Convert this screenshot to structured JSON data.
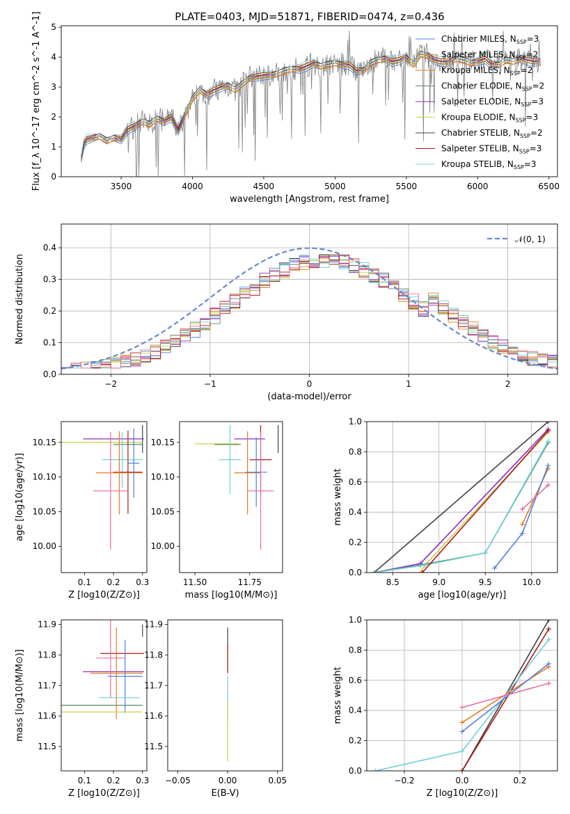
{
  "figure": {
    "title": "PLATE=0403, MJD=51871, FIBERID=0474, z=0.436"
  },
  "colors": {
    "Chabrier MILES": "#4f7fdc",
    "Salpeter MILES": "#d9851c",
    "Kroupa MILES": "#e87a1a",
    "Chabrier ELODIE": "#5a8a6a",
    "Salpeter ELODIE": "#8a2cc0",
    "Kroupa ELODIE": "#c8d14a",
    "Chabrier STELIB": "#404040",
    "Salpeter STELIB": "#b01515",
    "Kroupa STELIB": "#70d0d8",
    "pink": "#e36fa6",
    "data": "#7f7f7f",
    "normal": "#6688d4"
  },
  "chart_data": [
    {
      "id": "spectrum",
      "type": "line",
      "xlabel": "wavelength [Angstrom, rest frame]",
      "ylabel": "Flux [f_λ 10^-17 erg cm^-2 s^-1 A^-1]",
      "xlim": [
        3080,
        6560
      ],
      "ylim": [
        0,
        5.05
      ],
      "xticks": [
        3500,
        4000,
        4500,
        5000,
        5500,
        6000,
        6500
      ],
      "yticks": [
        0,
        1,
        2,
        3,
        4,
        5
      ],
      "grid": false,
      "legend_position": "top-right",
      "legend": [
        {
          "name": "Chabrier MILES",
          "nssp": "3",
          "color": "#4f7fdc"
        },
        {
          "name": "Salpeter MILES",
          "nssp": "2",
          "color": "#d9851c"
        },
        {
          "name": "Kroupa MILES",
          "nssp": "2",
          "color": "#e87a1a"
        },
        {
          "name": "Chabrier ELODIE",
          "nssp": "2",
          "color": "#5a8a6a"
        },
        {
          "name": "Salpeter ELODIE",
          "nssp": "3",
          "color": "#8a2cc0"
        },
        {
          "name": "Kroupa ELODIE",
          "nssp": "3",
          "color": "#c8d14a"
        },
        {
          "name": "Chabrier STELIB",
          "nssp": "2",
          "color": "#404040"
        },
        {
          "name": "Salpeter STELIB",
          "nssp": "3",
          "color": "#b01515"
        },
        {
          "name": "Kroupa STELIB",
          "nssp": "3",
          "color": "#70d0d8"
        }
      ],
      "model_x": [
        3220,
        3240,
        3260,
        3300,
        3350,
        3400,
        3450,
        3500,
        3550,
        3600,
        3650,
        3700,
        3750,
        3800,
        3850,
        3900,
        3950,
        4000,
        4050,
        4100,
        4150,
        4200,
        4250,
        4300,
        4350,
        4400,
        4450,
        4500,
        4550,
        4600,
        4650,
        4700,
        4750,
        4800,
        4850,
        4900,
        4950,
        5000,
        5050,
        5100,
        5150,
        5200,
        5250,
        5300,
        5350,
        5400,
        5450,
        5500,
        5550,
        5600,
        5650,
        5700,
        5750,
        5800,
        5850,
        5900,
        5950,
        6000,
        6050,
        6100,
        6150,
        6200,
        6250,
        6300,
        6350,
        6400,
        6440
      ],
      "model_y": [
        0.6,
        1.1,
        1.25,
        1.3,
        1.35,
        1.2,
        1.3,
        1.25,
        1.6,
        1.7,
        1.85,
        1.75,
        1.95,
        1.85,
        2.0,
        1.55,
        2.1,
        2.6,
        2.9,
        2.75,
        2.9,
        3.0,
        3.05,
        2.9,
        3.1,
        3.3,
        3.35,
        3.4,
        3.4,
        3.45,
        3.55,
        3.6,
        3.6,
        3.7,
        3.8,
        3.7,
        3.75,
        3.8,
        3.75,
        3.75,
        3.55,
        3.55,
        3.8,
        3.9,
        3.95,
        3.85,
        3.9,
        4.0,
        3.75,
        4.1,
        4.05,
        3.9,
        3.85,
        3.85,
        3.95,
        3.9,
        3.8,
        3.85,
        3.95,
        3.75,
        3.75,
        3.9,
        3.85,
        3.95,
        3.9,
        3.85,
        3.85
      ]
    },
    {
      "id": "residuals",
      "type": "histogram",
      "xlabel": "(data-model)/error",
      "ylabel": "Normed distribution",
      "xlim": [
        -2.5,
        2.5
      ],
      "ylim": [
        0,
        0.475
      ],
      "xticks": [
        -2,
        -1,
        0,
        1,
        2
      ],
      "yticks": [
        0.0,
        0.1,
        0.2,
        0.3,
        0.4
      ],
      "grid": true,
      "legend": [
        {
          "name": "N(0,1)",
          "color": "#6688d4"
        }
      ],
      "legend_position": "top-right",
      "bin_width": 0.1
    },
    {
      "id": "age-vs-Z",
      "type": "errorbar",
      "xlabel": "Z [log10(Z/Z⊙)]",
      "ylabel": "age [log10(age/yr)]",
      "xlim": [
        0.02,
        0.315
      ],
      "ylim": [
        9.962,
        10.18
      ],
      "xticks": [
        0.1,
        0.2,
        0.3
      ],
      "yticks": [
        10.0,
        10.05,
        10.1,
        10.15
      ],
      "points": [
        {
          "x": 0.3,
          "y": 10.155,
          "xerr": 0.0,
          "yerr": 0.02,
          "color": "#404040"
        },
        {
          "x": 0.2,
          "y": 10.155,
          "xerr": 0.105,
          "yerr": 0.0,
          "color": "#8a2cc0"
        },
        {
          "x": 0.15,
          "y": 10.15,
          "xerr": 0.15,
          "yerr": 0.0,
          "color": "#c8d14a"
        },
        {
          "x": 0.25,
          "y": 10.147,
          "xerr": 0.05,
          "yerr": 0.0,
          "color": "#5a8a6a"
        },
        {
          "x": 0.23,
          "y": 10.125,
          "xerr": 0.07,
          "yerr": 0.04,
          "color": "#70d0d8"
        },
        {
          "x": 0.25,
          "y": 10.107,
          "xerr": 0.05,
          "yerr": 0.06,
          "color": "#b01515"
        },
        {
          "x": 0.22,
          "y": 10.106,
          "xerr": 0.08,
          "yerr": 0.06,
          "color": "#e87a1a"
        },
        {
          "x": 0.27,
          "y": 10.12,
          "xerr": 0.02,
          "yerr": 0.05,
          "color": "#4f7fdc"
        },
        {
          "x": 0.19,
          "y": 10.08,
          "xerr": 0.06,
          "yerr": 0.085,
          "color": "#e36fa6"
        }
      ]
    },
    {
      "id": "age-vs-mass",
      "type": "errorbar",
      "xlabel": "mass [log10(M/M⊙)]",
      "ylabel": "",
      "xlim": [
        11.43,
        11.9
      ],
      "ylim": [
        9.962,
        10.18
      ],
      "xticks": [
        11.5,
        11.75
      ],
      "yticks": [
        10.0,
        10.05,
        10.1,
        10.15
      ],
      "points": [
        {
          "x": 11.88,
          "y": 10.155,
          "xerr": 0.0,
          "yerr": 0.02,
          "color": "#404040"
        },
        {
          "x": 11.75,
          "y": 10.155,
          "xerr": 0.07,
          "yerr": 0.0,
          "color": "#8a2cc0"
        },
        {
          "x": 11.6,
          "y": 10.148,
          "xerr": 0.1,
          "yerr": 0.0,
          "color": "#c8d14a"
        },
        {
          "x": 11.65,
          "y": 10.147,
          "xerr": 0.06,
          "yerr": 0.0,
          "color": "#5a8a6a"
        },
        {
          "x": 11.66,
          "y": 10.125,
          "xerr": 0.05,
          "yerr": 0.05,
          "color": "#70d0d8"
        },
        {
          "x": 11.8,
          "y": 10.125,
          "xerr": 0.05,
          "yerr": 0.05,
          "color": "#b01515"
        },
        {
          "x": 11.74,
          "y": 10.106,
          "xerr": 0.06,
          "yerr": 0.06,
          "color": "#e87a1a"
        },
        {
          "x": 11.78,
          "y": 10.107,
          "xerr": 0.05,
          "yerr": 0.05,
          "color": "#4f7fdc"
        },
        {
          "x": 11.8,
          "y": 10.08,
          "xerr": 0.06,
          "yerr": 0.085,
          "color": "#e36fa6"
        }
      ]
    },
    {
      "id": "cumulative-age",
      "type": "line",
      "xlabel": "age [log10(age/yr)]",
      "ylabel": "mass weight",
      "xlim": [
        8.22,
        10.28
      ],
      "ylim": [
        0,
        1.0
      ],
      "xticks": [
        8.5,
        9.0,
        9.5,
        10.0
      ],
      "yticks": [
        0.0,
        0.2,
        0.4,
        0.6,
        0.8,
        1.0
      ],
      "grid": true,
      "series": [
        {
          "color": "#404040",
          "x": [
            8.3,
            10.18
          ],
          "y": [
            0.0,
            1.0
          ]
        },
        {
          "color": "#8a2cc0",
          "x": [
            8.3,
            8.8,
            10.18
          ],
          "y": [
            0.0,
            0.06,
            0.95
          ]
        },
        {
          "color": "#c8d14a",
          "x": [
            8.8,
            8.85,
            10.18
          ],
          "y": [
            0.0,
            0.05,
            0.93
          ]
        },
        {
          "color": "#5a8a6a",
          "x": [
            8.3,
            8.8,
            9.5,
            10.18
          ],
          "y": [
            0.0,
            0.05,
            0.13,
            0.86
          ]
        },
        {
          "color": "#70d0d8",
          "x": [
            8.3,
            8.85,
            9.5,
            10.18
          ],
          "y": [
            0.0,
            0.05,
            0.13,
            0.87
          ]
        },
        {
          "color": "#b01515",
          "x": [
            8.82,
            10.18
          ],
          "y": [
            0.0,
            0.94
          ]
        },
        {
          "color": "#e87a1a",
          "x": [
            9.9,
            10.18
          ],
          "y": [
            0.32,
            0.69
          ]
        },
        {
          "color": "#4f7fdc",
          "x": [
            9.6,
            9.9,
            10.18
          ],
          "y": [
            0.03,
            0.26,
            0.71
          ]
        },
        {
          "color": "#e36fa6",
          "x": [
            9.9,
            10.18
          ],
          "y": [
            0.42,
            0.58
          ]
        }
      ]
    },
    {
      "id": "mass-vs-Z",
      "type": "errorbar",
      "xlabel": "Z [log10(Z/Z⊙)]",
      "ylabel": "mass [log10(M/M⊙)]",
      "xlim": [
        0.02,
        0.315
      ],
      "ylim": [
        11.42,
        11.915
      ],
      "xticks": [
        0.1,
        0.2,
        0.3
      ],
      "yticks": [
        11.5,
        11.6,
        11.7,
        11.8,
        11.9
      ],
      "points": [
        {
          "x": 0.3,
          "y": 11.88,
          "xerr": 0.0,
          "yerr": 0.02,
          "color": "#404040"
        },
        {
          "x": 0.23,
          "y": 11.805,
          "xerr": 0.075,
          "yerr": 0.0,
          "color": "#b01515"
        },
        {
          "x": 0.2,
          "y": 11.745,
          "xerr": 0.105,
          "yerr": 0.0,
          "color": "#8a2cc0"
        },
        {
          "x": 0.21,
          "y": 11.74,
          "xerr": 0.09,
          "yerr": 0.15,
          "color": "#e87a1a"
        },
        {
          "x": 0.24,
          "y": 11.73,
          "xerr": 0.06,
          "yerr": 0.12,
          "color": "#4f7fdc"
        },
        {
          "x": 0.15,
          "y": 11.635,
          "xerr": 0.15,
          "yerr": 0.0,
          "color": "#5a8a6a"
        },
        {
          "x": 0.22,
          "y": 11.66,
          "xerr": 0.07,
          "yerr": 0.0,
          "color": "#70d0d8"
        },
        {
          "x": 0.15,
          "y": 11.613,
          "xerr": 0.15,
          "yerr": 0.0,
          "color": "#c8d14a"
        },
        {
          "x": 0.19,
          "y": 11.79,
          "xerr": 0.05,
          "yerr": 0.13,
          "color": "#e36fa6"
        }
      ]
    },
    {
      "id": "mass-vs-ebv",
      "type": "errorbar",
      "xlabel": "E(B-V)",
      "ylabel": "",
      "xlim": [
        -0.06,
        0.055
      ],
      "ylim": [
        11.42,
        11.915
      ],
      "xticks": [
        -0.05,
        0.0,
        0.05
      ],
      "yticks": [
        11.5,
        11.6,
        11.7,
        11.8,
        11.9
      ],
      "points": [
        {
          "x": 0.0,
          "y": 11.82,
          "xerr": 0.0,
          "yerr": 0.07,
          "color": "#404040"
        },
        {
          "x": 0.0,
          "y": 11.79,
          "xerr": 0.0,
          "yerr": 0.05,
          "color": "#b01515"
        },
        {
          "x": 0.0,
          "y": 11.65,
          "xerr": 0.0,
          "yerr": 0.08,
          "color": "#70d0d8"
        },
        {
          "x": 0.0,
          "y": 11.55,
          "xerr": 0.0,
          "yerr": 0.1,
          "color": "#c8d14a"
        }
      ]
    },
    {
      "id": "cumulative-Z",
      "type": "line",
      "xlabel": "Z [log10(Z/Z⊙)]",
      "ylabel": "mass weight",
      "xlim": [
        -0.33,
        0.33
      ],
      "ylim": [
        0,
        1.0
      ],
      "xticks": [
        -0.2,
        0.0,
        0.2
      ],
      "yticks": [
        0.0,
        0.2,
        0.4,
        0.6,
        0.8,
        1.0
      ],
      "grid": true,
      "series": [
        {
          "color": "#404040",
          "x": [
            0.0,
            0.3
          ],
          "y": [
            0.0,
            1.0
          ]
        },
        {
          "color": "#b01515",
          "x": [
            0.0,
            0.3
          ],
          "y": [
            0.0,
            0.94
          ]
        },
        {
          "color": "#70d0d8",
          "x": [
            -0.3,
            0.0,
            0.3
          ],
          "y": [
            0.0,
            0.13,
            0.87
          ]
        },
        {
          "color": "#e87a1a",
          "x": [
            0.0,
            0.3
          ],
          "y": [
            0.32,
            0.69
          ]
        },
        {
          "color": "#4f7fdc",
          "x": [
            0.0,
            0.3
          ],
          "y": [
            0.26,
            0.71
          ]
        },
        {
          "color": "#e36fa6",
          "x": [
            0.0,
            0.3
          ],
          "y": [
            0.42,
            0.58
          ]
        }
      ]
    }
  ]
}
